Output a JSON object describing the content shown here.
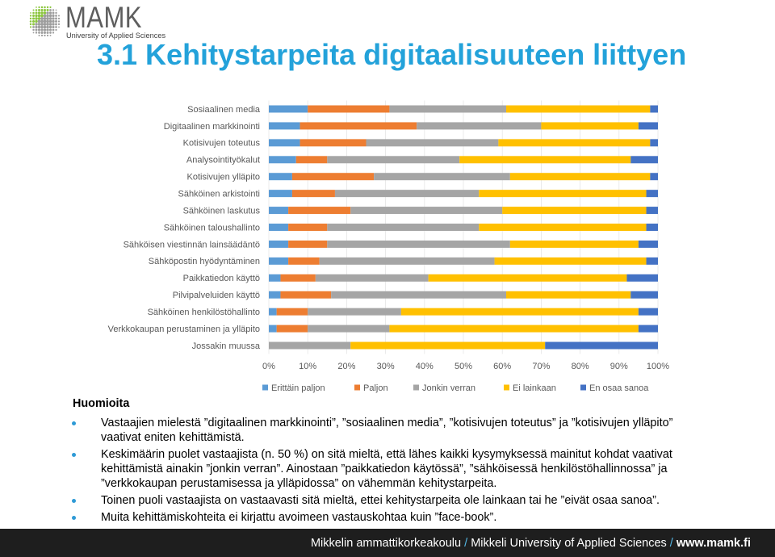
{
  "logo": {
    "name": "MAMK",
    "subtitle": "University of Applied Sciences"
  },
  "slide": {
    "title": "3.1 Kehitystarpeita digitaalisuuteen liittyen"
  },
  "colors": {
    "title": "#23A2DA",
    "bullet": "#2E9AD6",
    "text": "#000000",
    "chart_text": "#595959",
    "logo_green": "#8CC63F",
    "logo_gray": "#9D9D9D",
    "logo_text": "#5E5E5E",
    "logo_sub": "#3F3F3F",
    "footer_bg": "#1E1E1E",
    "footer_text": "#FFFFFF",
    "footer_accent": "#55B8E6"
  },
  "chart_data": {
    "type": "bar",
    "orientation": "horizontal",
    "stacked": true,
    "title": "",
    "xlabel": "",
    "ylabel": "",
    "xlim": [
      0,
      100
    ],
    "xticks": [
      "0%",
      "10%",
      "20%",
      "30%",
      "40%",
      "50%",
      "60%",
      "70%",
      "80%",
      "90%",
      "100%"
    ],
    "grid": true,
    "legend": "bottom",
    "categories": [
      "Sosiaalinen media",
      "Digitaalinen markkinointi",
      "Kotisivujen toteutus",
      "Analysointityökalut",
      "Kotisivujen ylläpito",
      "Sähköinen arkistointi",
      "Sähköinen laskutus",
      "Sähköinen taloushallinto",
      "Sähköisen viestinnän lainsäädäntö",
      "Sähköpostin hyödyntäminen",
      "Paikkatiedon käyttö",
      "Pilvipalveluiden käyttö",
      "Sähköinen henkilöstöhallinto",
      "Verkkokaupan perustaminen ja ylläpito",
      "Jossakin muussa"
    ],
    "series": [
      {
        "name": "Erittäin paljon",
        "color": "#5B9BD5",
        "values": [
          10,
          8,
          8,
          7,
          6,
          6,
          5,
          5,
          5,
          5,
          3,
          3,
          2,
          2,
          0
        ]
      },
      {
        "name": "Paljon",
        "color": "#ED7D31",
        "values": [
          21,
          30,
          17,
          8,
          21,
          11,
          16,
          10,
          10,
          8,
          9,
          13,
          8,
          8,
          0
        ]
      },
      {
        "name": "Jonkin verran",
        "color": "#A5A5A5",
        "values": [
          30,
          32,
          34,
          34,
          35,
          37,
          39,
          39,
          47,
          45,
          29,
          45,
          24,
          21,
          21
        ]
      },
      {
        "name": "Ei lainkaan",
        "color": "#FFC000",
        "values": [
          37,
          25,
          39,
          44,
          36,
          43,
          37,
          43,
          33,
          39,
          51,
          32,
          61,
          64,
          50
        ]
      },
      {
        "name": "En osaa sanoa",
        "color": "#4472C4",
        "values": [
          2,
          5,
          2,
          7,
          2,
          3,
          3,
          3,
          5,
          3,
          8,
          7,
          5,
          5,
          29
        ]
      }
    ]
  },
  "notes": {
    "heading": "Huomioita",
    "bullets": [
      {
        "lines": [
          "Vastaajien mielestä ”digitaalinen markkinointi”, ”sosiaalinen media”, ”kotisivujen toteutus” ja ”kotisivujen ylläpito”",
          "vaativat eniten kehittämistä."
        ]
      },
      {
        "lines": [
          "Keskimäärin puolet vastaajista (n. 50 %) on sitä mieltä, että lähes kaikki kysymyksessä mainitut kohdat vaativat",
          "kehittämistä ainakin ”jonkin verran”. Ainostaan ”paikkatiedon käytössä”, ”sähköisessä henkilöstöhallinnossa” ja",
          "”verkkokaupan perustamisessa ja ylläpidossa” on vähemmän kehitystarpeita."
        ]
      },
      {
        "lines": [
          "Toinen puoli vastaajista on vastaavasti sitä mieltä, ettei kehitystarpeita ole lainkaan tai he ”eivät osaa sanoa”."
        ]
      },
      {
        "lines": [
          "Muita kehittämiskohteita ei kirjattu avoimeen vastauskohtaa kuin ”face-book”."
        ]
      }
    ]
  },
  "footer": {
    "school_fi": "Mikkelin ammattikorkeakoulu",
    "separator": "/",
    "school_en": "Mikkeli University of Applied Sciences",
    "url": "www.mamk.fi"
  }
}
